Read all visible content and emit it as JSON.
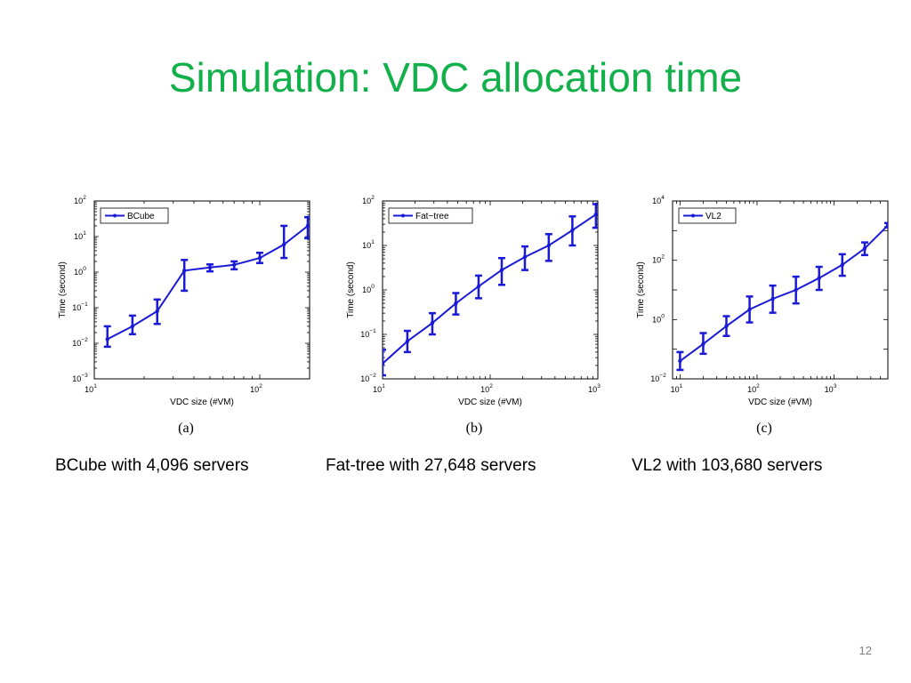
{
  "slide": {
    "title": "Simulation: VDC allocation time",
    "page_number": "12"
  },
  "colors": {
    "title": "#12b04a",
    "series": "#1a1ad6"
  },
  "captions": [
    "BCube with 4,096 servers",
    "Fat-tree with 27,648 servers",
    "VL2 with 103,680 servers"
  ],
  "chart_data": [
    {
      "type": "line",
      "panel_label": "(a)",
      "xlabel": "VDC size (#VM)",
      "ylabel": "Time (second)",
      "xscale": "log",
      "yscale": "log",
      "xlim": [
        10,
        200
      ],
      "ylim": [
        0.001,
        100
      ],
      "legend": "top-left",
      "error_bars": true,
      "series": [
        {
          "name": "BCube",
          "x": [
            12,
            17,
            24,
            35,
            50,
            70,
            100,
            140,
            195
          ],
          "y": [
            0.013,
            0.03,
            0.08,
            1.1,
            1.35,
            1.6,
            2.5,
            6,
            20
          ],
          "err_low": [
            0.008,
            0.018,
            0.035,
            0.3,
            1.05,
            1.2,
            1.8,
            2.5,
            9
          ],
          "err_high": [
            0.03,
            0.06,
            0.17,
            2.2,
            1.65,
            2.0,
            3.5,
            20,
            35
          ]
        }
      ],
      "x_ticks": [
        {
          "base": "10",
          "exp": "1",
          "value": 10
        },
        {
          "base": "10",
          "exp": "2",
          "value": 100
        }
      ],
      "y_ticks": [
        {
          "base": "10",
          "exp": "−3",
          "value": 0.001
        },
        {
          "base": "10",
          "exp": "−2",
          "value": 0.01
        },
        {
          "base": "10",
          "exp": "−1",
          "value": 0.1
        },
        {
          "base": "10",
          "exp": "0",
          "value": 1
        },
        {
          "base": "10",
          "exp": "1",
          "value": 10
        },
        {
          "base": "10",
          "exp": "2",
          "value": 100
        }
      ]
    },
    {
      "type": "line",
      "panel_label": "(b)",
      "xlabel": "VDC size (#VM)",
      "ylabel": "Time (second)",
      "xscale": "log",
      "yscale": "log",
      "xlim": [
        10,
        1000
      ],
      "ylim": [
        0.01,
        100
      ],
      "legend": "top-left",
      "error_bars": true,
      "series": [
        {
          "name": "Fat−tree",
          "x": [
            10,
            17,
            29,
            48,
            78,
            128,
            210,
            350,
            580,
            960
          ],
          "y": [
            0.022,
            0.07,
            0.18,
            0.5,
            1.2,
            2.8,
            5.5,
            10,
            22,
            50
          ],
          "err_low": [
            0.012,
            0.04,
            0.1,
            0.28,
            0.65,
            1.3,
            2.8,
            4.5,
            10,
            25
          ],
          "err_high": [
            0.045,
            0.12,
            0.3,
            0.85,
            2.1,
            5.2,
            9.5,
            18,
            45,
            85
          ]
        }
      ],
      "x_ticks": [
        {
          "base": "10",
          "exp": "1",
          "value": 10
        },
        {
          "base": "10",
          "exp": "2",
          "value": 100
        },
        {
          "base": "10",
          "exp": "3",
          "value": 1000
        }
      ],
      "y_ticks": [
        {
          "base": "10",
          "exp": "−2",
          "value": 0.01
        },
        {
          "base": "10",
          "exp": "−1",
          "value": 0.1
        },
        {
          "base": "10",
          "exp": "0",
          "value": 1
        },
        {
          "base": "10",
          "exp": "1",
          "value": 10
        },
        {
          "base": "10",
          "exp": "2",
          "value": 100
        }
      ]
    },
    {
      "type": "line",
      "panel_label": "(c)",
      "xlabel": "VDC size (#VM)",
      "ylabel": "Time (second)",
      "xscale": "log",
      "yscale": "log",
      "xlim": [
        8,
        5000
      ],
      "ylim": [
        0.01,
        10000
      ],
      "legend": "top-left",
      "error_bars": true,
      "series": [
        {
          "name": "VL2",
          "x": [
            10,
            20,
            40,
            80,
            160,
            320,
            640,
            1280,
            2500,
            5000
          ],
          "y": [
            0.04,
            0.15,
            0.6,
            2.2,
            5,
            10,
            25,
            70,
            250,
            1500
          ],
          "err_low": [
            0.02,
            0.07,
            0.28,
            0.8,
            1.7,
            3.5,
            10,
            30,
            150,
            1300
          ],
          "err_high": [
            0.08,
            0.35,
            1.3,
            6,
            14,
            28,
            60,
            160,
            400,
            1800
          ]
        }
      ],
      "x_ticks": [
        {
          "base": "10",
          "exp": "1",
          "value": 10
        },
        {
          "base": "10",
          "exp": "2",
          "value": 100
        },
        {
          "base": "10",
          "exp": "3",
          "value": 1000
        }
      ],
      "y_ticks": [
        {
          "base": "10",
          "exp": "−2",
          "value": 0.01
        },
        {
          "base": "10",
          "exp": "0",
          "value": 1
        },
        {
          "base": "10",
          "exp": "2",
          "value": 100
        },
        {
          "base": "10",
          "exp": "4",
          "value": 10000
        }
      ]
    }
  ]
}
